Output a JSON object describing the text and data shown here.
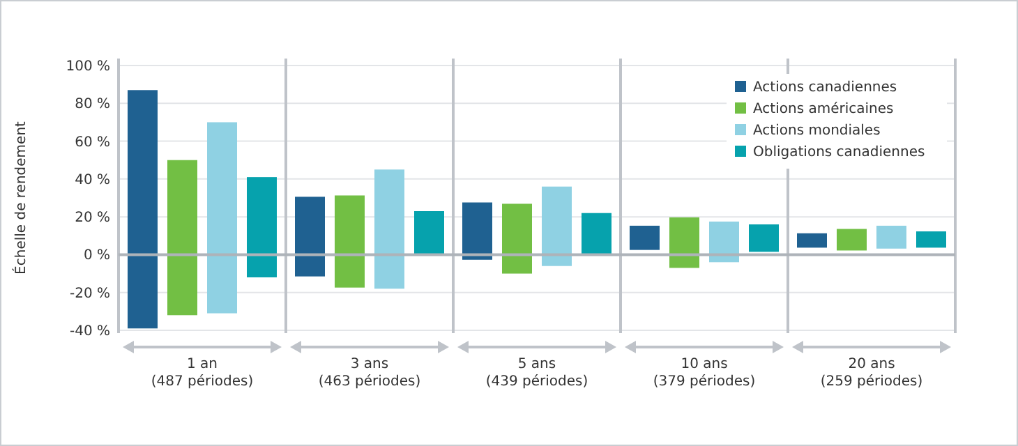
{
  "chart_data": {
    "type": "bar",
    "ylabel": "Échelle de rendement",
    "categories": [
      "1 an\n(487 périodes)",
      "3 ans\n(463 périodes)",
      "5 ans\n(439 périodes)",
      "10 ans\n(379 périodes)",
      "20 ans\n(259 périodes)"
    ],
    "series": [
      {
        "name": "Actions canadiennes",
        "color": "#1f6191",
        "base": [
          -39,
          -11.5,
          -2.7,
          2.5,
          3.7
        ],
        "values": [
          126,
          42.1,
          30.3,
          12.8,
          7.6
        ]
      },
      {
        "name": "Actions américaines",
        "color": "#72bf44",
        "base": [
          -32,
          -17.4,
          -10,
          -7,
          2.2
        ],
        "values": [
          82,
          48.7,
          36.9,
          26.7,
          11.4
        ]
      },
      {
        "name": "Actions mondiales",
        "color": "#8fd1e3",
        "base": [
          -31,
          -18,
          -6,
          -4,
          3.2
        ],
        "values": [
          101,
          63,
          42,
          21.5,
          12.1
        ]
      },
      {
        "name": "Obligations canadiennes",
        "color": "#06a2ad",
        "base": [
          -12,
          0,
          0,
          1.5,
          3.7
        ],
        "values": [
          53,
          23,
          22,
          14.5,
          8.6
        ]
      }
    ],
    "ylim": [
      -40,
      100
    ],
    "yticks": [
      {
        "value": -40,
        "label": "-40 %"
      },
      {
        "value": -20,
        "label": "-20 %"
      },
      {
        "value": 0,
        "label": "0 %"
      },
      {
        "value": 20,
        "label": "20 %"
      },
      {
        "value": 40,
        "label": "40 %"
      },
      {
        "value": 60,
        "label": "60 %"
      },
      {
        "value": 80,
        "label": "80 %"
      },
      {
        "value": 100,
        "label": "100 %"
      }
    ],
    "grid": "y",
    "legend": "top right"
  }
}
